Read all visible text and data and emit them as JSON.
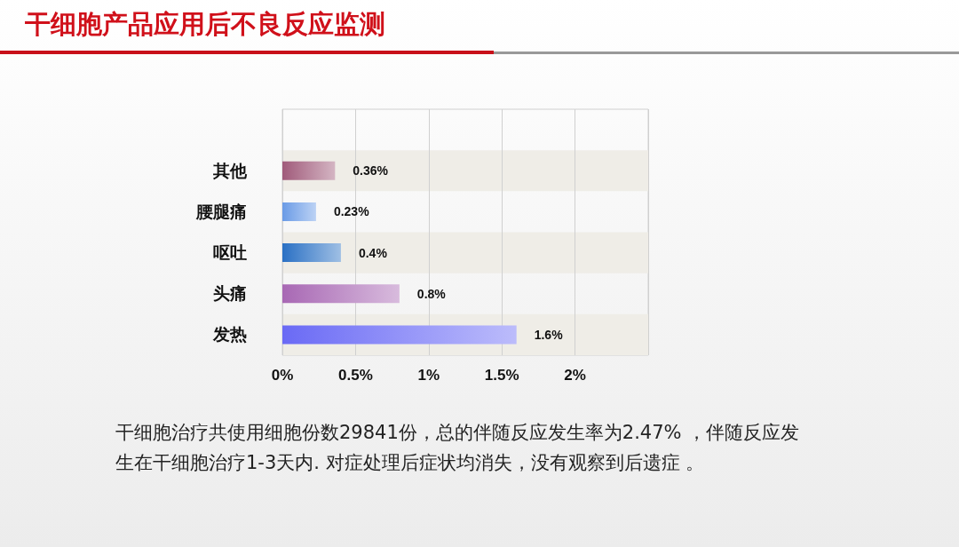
{
  "chart_data": {
    "type": "bar",
    "orientation": "horizontal",
    "title": "干细胞产品应用后不良反应监测",
    "categories": [
      null,
      "其他",
      "腰腿痛",
      "呕吐",
      "头痛",
      "发热"
    ],
    "values": [
      null,
      0.36,
      0.23,
      0.4,
      0.8,
      1.6
    ],
    "colors": [
      "#a05a7a",
      "#a05a7a",
      "#6a9be6",
      "#2a70c4",
      "#a868b4",
      "#6a6af5"
    ],
    "value_labels": [
      null,
      "0.36%",
      "0.23%",
      "0.4%",
      "0.8%",
      "1.6%"
    ],
    "xlim": [
      0,
      2.5
    ],
    "xticks": [
      {
        "value": 0,
        "label": "0%"
      },
      {
        "value": 0.5,
        "label": "0.5%"
      },
      {
        "value": 1,
        "label": "1%"
      },
      {
        "value": 1.5,
        "label": "1.5%"
      },
      {
        "value": 2,
        "label": "2%"
      },
      {
        "value": 2.5,
        "label": null
      }
    ],
    "grid": "x",
    "annotations": [
      "干细胞治疗共使用细胞份数29841份，总的伴随反应发生率为2.47% ，伴随反应发生在干细胞治疗1-3天内. 对症处理后症状均消失，没有观察到后遗症 。"
    ]
  }
}
